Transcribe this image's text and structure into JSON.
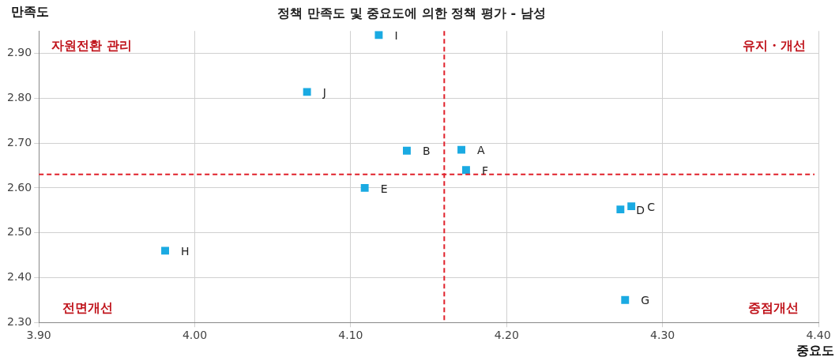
{
  "chart_data": {
    "type": "scatter",
    "title": "정책 만족도 및 중요도에 의한 정책 평가 - 남성",
    "xlabel": "중요도",
    "ylabel": "만족도",
    "xlim": [
      3.9,
      4.4
    ],
    "xticks": [
      {
        "value": 3.9,
        "label": "3.90"
      },
      {
        "value": 4.0,
        "label": "4.00"
      },
      {
        "value": 4.1,
        "label": "4.10"
      },
      {
        "value": 4.2,
        "label": "4.20"
      },
      {
        "value": 4.3,
        "label": "4.30"
      },
      {
        "value": 4.4,
        "label": "4.40"
      }
    ],
    "ylim": [
      2.3,
      2.95
    ],
    "yticks": [
      {
        "value": 2.3,
        "label": "2.30"
      },
      {
        "value": 2.4,
        "label": "2.40"
      },
      {
        "value": 2.5,
        "label": "2.50"
      },
      {
        "value": 2.6,
        "label": "2.60"
      },
      {
        "value": 2.7,
        "label": "2.70"
      },
      {
        "value": 2.8,
        "label": "2.80"
      },
      {
        "value": 2.9,
        "label": "2.90"
      }
    ],
    "grid": true,
    "legend": false,
    "marker": "square",
    "series": [
      {
        "name": "A",
        "color": "#1aaae2",
        "x": [
          4.171
        ],
        "values": [
          2.685
        ]
      },
      {
        "name": "B",
        "color": "#1aaae2",
        "x": [
          4.136
        ],
        "values": [
          2.683
        ]
      },
      {
        "name": "C",
        "color": "#1aaae2",
        "x": [
          4.28
        ],
        "values": [
          2.559
        ]
      },
      {
        "name": "D",
        "color": "#1aaae2",
        "x": [
          4.273
        ],
        "values": [
          2.552
        ]
      },
      {
        "name": "E",
        "color": "#1aaae2",
        "x": [
          4.109
        ],
        "values": [
          2.6
        ]
      },
      {
        "name": "F",
        "color": "#1aaae2",
        "x": [
          4.174
        ],
        "values": [
          2.64
        ]
      },
      {
        "name": "G",
        "color": "#1aaae2",
        "x": [
          4.276
        ],
        "values": [
          2.35
        ]
      },
      {
        "name": "H",
        "color": "#1aaae2",
        "x": [
          3.981
        ],
        "values": [
          2.46
        ]
      },
      {
        "name": "I",
        "color": "#1aaae2",
        "x": [
          4.118
        ],
        "values": [
          2.941
        ]
      },
      {
        "name": "J",
        "color": "#1aaae2",
        "x": [
          4.072
        ],
        "values": [
          2.814
        ]
      }
    ],
    "ref_lines": [
      {
        "axis": "x",
        "value": 4.16,
        "color": "#e0202a",
        "line_style": "dashed"
      },
      {
        "axis": "y",
        "value": 2.63,
        "color": "#e0202a",
        "line_style": "dashed"
      }
    ],
    "annotations": [
      "자원전환 관리",
      "유지・개선",
      "전면개선",
      "중점개선"
    ]
  }
}
